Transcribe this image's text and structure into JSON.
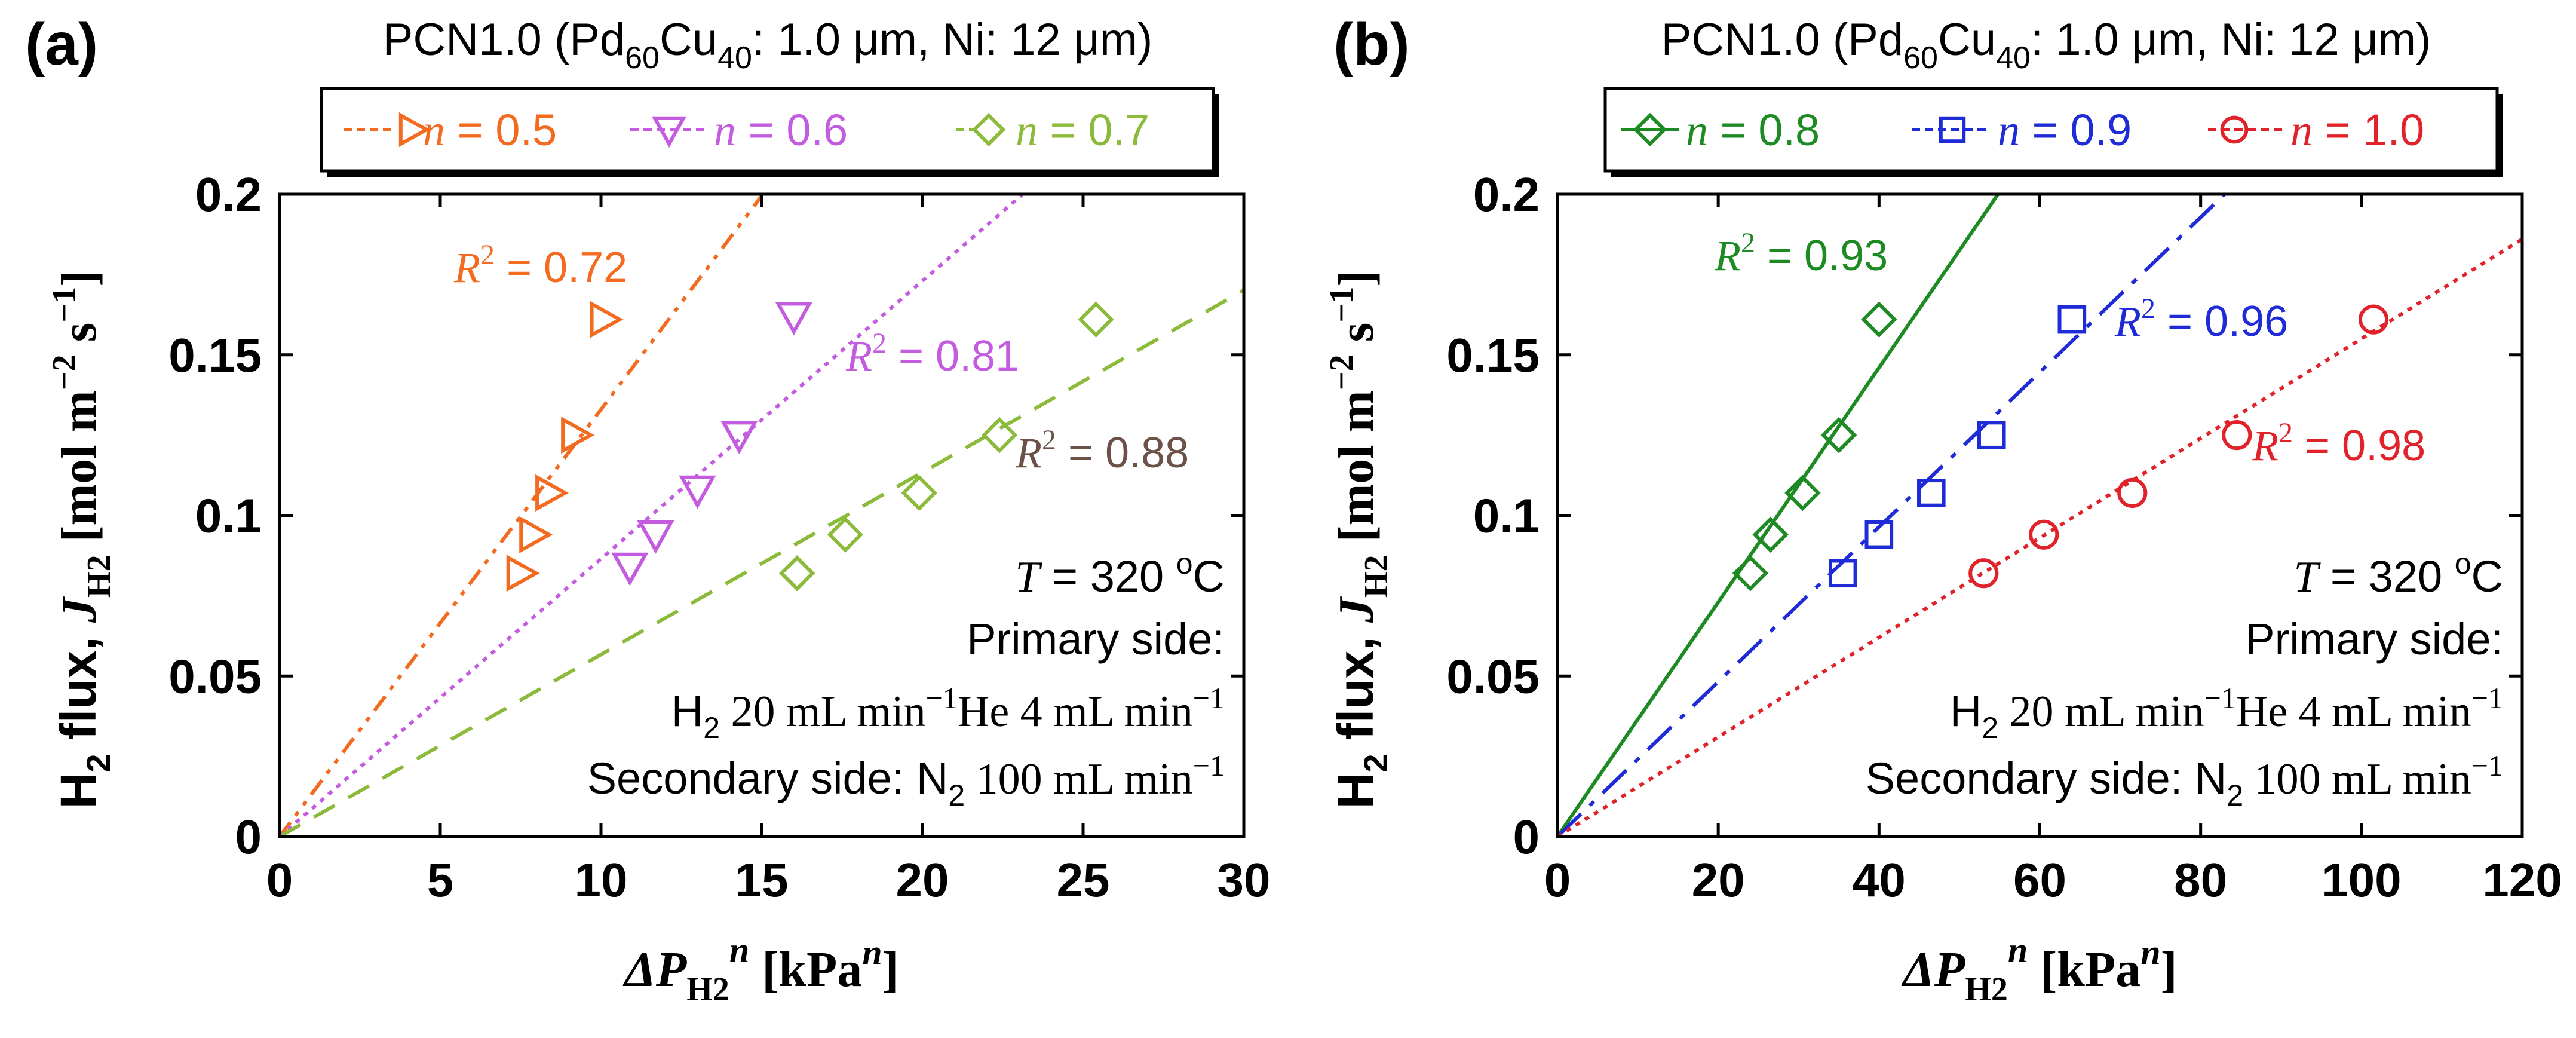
{
  "chart_data": [
    {
      "panel_label": "(a)",
      "type": "scatter",
      "title_parts": {
        "prefix": "PCN1.0 (Pd",
        "sub1": "60",
        "mid": "Cu",
        "sub2": "40",
        "rest": ": 1.0 μm, Ni: 12 μm)"
      },
      "xlabel_parts": {
        "delta_p": "ΔP",
        "sub": "H2",
        "sup": "n",
        "unit": "[kPa",
        "unit_sup": "n",
        "unit_end": "]"
      },
      "ylabel_parts": {
        "h": "H",
        "h_sub": "2",
        "flux": " flux, ",
        "j": "J",
        "j_sub": "H2",
        "unit": " [mol m",
        "unit_sup1": "−2",
        "s": " s",
        "unit_sup2": "−1",
        "unit_end": "]"
      },
      "xlim": [
        0,
        30
      ],
      "ylim": [
        0,
        0.2
      ],
      "xticks": [
        0,
        5,
        10,
        15,
        20,
        25,
        30
      ],
      "yticks": [
        0,
        0.05,
        0.1,
        0.15,
        0.2
      ],
      "xtick_labels": [
        "0",
        "5",
        "10",
        "15",
        "20",
        "25",
        "30"
      ],
      "ytick_labels": [
        "0",
        "0.05",
        "0.1",
        "0.15",
        "0.2"
      ],
      "legend_position": "top",
      "series": [
        {
          "name": "n = 0.5",
          "legend_n": "n",
          "legend_value": " = 0.5",
          "marker": "triangle-right",
          "color": "#f26b21",
          "line_style": "dashdot2",
          "x": [
            7.5,
            7.9,
            8.4,
            9.2,
            10.1
          ],
          "y": [
            0.082,
            0.094,
            0.107,
            0.125,
            0.161
          ],
          "fit_slope": 0.0133,
          "fit_xmax": 15.0,
          "r2_label": "R",
          "r2_sup": "2",
          "r2_value": " = 0.72",
          "r2_color": "#f26b21"
        },
        {
          "name": "n = 0.6",
          "legend_n": "n",
          "legend_value": " = 0.6",
          "marker": "triangle-down",
          "color": "#c45ce0",
          "line_style": "dotted",
          "x": [
            10.9,
            11.7,
            13.0,
            14.3,
            16.0
          ],
          "y": [
            0.084,
            0.094,
            0.108,
            0.125,
            0.162
          ],
          "fit_slope": 0.00865,
          "fit_xmax": 23.1,
          "r2_label": "R",
          "r2_sup": "2",
          "r2_value": " = 0.81",
          "r2_color": "#c45ce0"
        },
        {
          "name": "n = 0.7",
          "legend_n": "n",
          "legend_value": " = 0.7",
          "marker": "diamond",
          "color": "#8cba3a",
          "line_style": "dashed",
          "x": [
            16.1,
            17.6,
            19.9,
            22.4,
            25.4
          ],
          "y": [
            0.082,
            0.094,
            0.107,
            0.125,
            0.161
          ],
          "fit_slope": 0.00567,
          "fit_xmax": 30,
          "r2_label": "R",
          "r2_sup": "2",
          "r2_value": " = 0.88",
          "r2_color": "#6b5148"
        }
      ],
      "annotation": {
        "t_label": "T",
        "t_value": " = 320 ",
        "t_unit_sup": "o",
        "t_unit": "C",
        "primary_label": "Primary side:",
        "h2": "H",
        "h2_sub": "2",
        "h2_flow": " 20 mL min",
        "h2_flow_sup": "−1",
        "he": "He 4 mL min",
        "he_sup": "−1",
        "secondary_label": "Secondary side: N",
        "n2_sub": "2",
        "n2_flow": " 100 mL min",
        "n2_flow_sup": "−1"
      }
    },
    {
      "panel_label": "(b)",
      "type": "scatter",
      "title_parts": {
        "prefix": "PCN1.0 (Pd",
        "sub1": "60",
        "mid": "Cu",
        "sub2": "40",
        "rest": ": 1.0 μm, Ni: 12 μm)"
      },
      "xlabel_parts": {
        "delta_p": "ΔP",
        "sub": "H2",
        "sup": "n",
        "unit": "[kPa",
        "unit_sup": "n",
        "unit_end": "]"
      },
      "ylabel_parts": {
        "h": "H",
        "h_sub": "2",
        "flux": " flux, ",
        "j": "J",
        "j_sub": "H2",
        "unit": " [mol m",
        "unit_sup1": "−2",
        "s": " s",
        "unit_sup2": "−1",
        "unit_end": "]"
      },
      "xlim": [
        0,
        120
      ],
      "ylim": [
        0,
        0.2
      ],
      "xticks": [
        0,
        20,
        40,
        60,
        80,
        100,
        120
      ],
      "yticks": [
        0,
        0.05,
        0.1,
        0.15,
        0.2
      ],
      "xtick_labels": [
        "0",
        "20",
        "40",
        "60",
        "80",
        "100",
        "120"
      ],
      "ytick_labels": [
        "0",
        "0.05",
        "0.1",
        "0.15",
        "0.2"
      ],
      "legend_position": "top",
      "series": [
        {
          "name": "n = 0.8",
          "legend_n": "n",
          "legend_value": " = 0.8",
          "marker": "diamond",
          "color": "#1e8a24",
          "line_style": "solid",
          "x": [
            24.0,
            26.5,
            30.5,
            35.0,
            40.0
          ],
          "y": [
            0.082,
            0.094,
            0.107,
            0.125,
            0.161
          ],
          "fit_slope": 0.00365,
          "fit_xmax": 54.8,
          "r2_label": "R",
          "r2_sup": "2",
          "r2_value": " = 0.93",
          "r2_color": "#1e8a24"
        },
        {
          "name": "n = 0.9",
          "legend_n": "n",
          "legend_value": " = 0.9",
          "marker": "square",
          "color": "#1f2bd6",
          "line_style": "dashdot",
          "x": [
            35.5,
            40.0,
            46.5,
            54.0,
            64.0
          ],
          "y": [
            0.082,
            0.094,
            0.107,
            0.125,
            0.161
          ],
          "fit_slope": 0.00241,
          "fit_xmax": 83.0,
          "r2_label": "R",
          "r2_sup": "2",
          "r2_value": " = 0.96",
          "r2_color": "#1f2bd6"
        },
        {
          "name": "n = 1.0",
          "legend_n": "n",
          "legend_value": " = 1.0",
          "marker": "circle",
          "color": "#e0232a",
          "line_style": "dotted",
          "x": [
            53.0,
            60.5,
            71.5,
            84.5,
            101.5
          ],
          "y": [
            0.082,
            0.094,
            0.107,
            0.125,
            0.161
          ],
          "fit_slope": 0.00155,
          "fit_xmax": 120,
          "r2_label": "R",
          "r2_sup": "2",
          "r2_value": " = 0.98",
          "r2_color": "#e0232a"
        }
      ],
      "annotation": {
        "t_label": "T",
        "t_value": " = 320 ",
        "t_unit_sup": "o",
        "t_unit": "C",
        "primary_label": "Primary side:",
        "h2": "H",
        "h2_sub": "2",
        "h2_flow": " 20 mL min",
        "h2_flow_sup": "−1",
        "he": "He 4 mL min",
        "he_sup": "−1",
        "secondary_label": "Secondary side: N",
        "n2_sub": "2",
        "n2_flow": " 100 mL min",
        "n2_flow_sup": "−1"
      }
    }
  ]
}
